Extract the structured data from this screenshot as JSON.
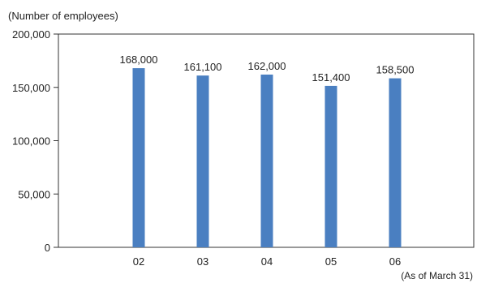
{
  "chart_data": {
    "type": "bar",
    "ylabel": "(Number of employees)",
    "note": "(As of March 31)",
    "categories": [
      "02",
      "03",
      "04",
      "05",
      "06"
    ],
    "values": [
      168000,
      161100,
      162000,
      151400,
      158500
    ],
    "data_labels": [
      "168,000",
      "161,100",
      "162,000",
      "151,400",
      "158,500"
    ],
    "y_ticks": [
      0,
      50000,
      100000,
      150000,
      200000
    ],
    "y_tick_labels": [
      "0",
      "50,000",
      "100,000",
      "150,000",
      "200,000"
    ],
    "ylim": [
      0,
      200000
    ],
    "grid": false,
    "bar_color": "#4a7fc1"
  }
}
